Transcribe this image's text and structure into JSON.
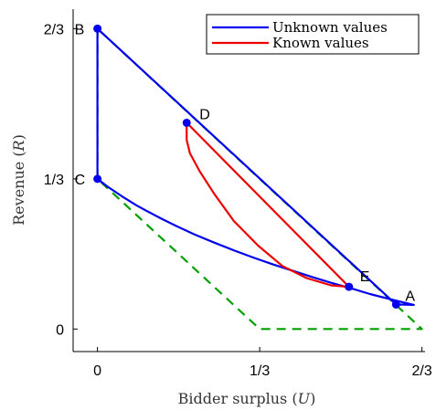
{
  "chart_data": {
    "type": "line",
    "title": "",
    "xlabel": "Bidder surplus (",
    "xlabel_var": "U",
    "xlabel_close": ")",
    "ylabel": "Revenue (",
    "ylabel_var": "R",
    "ylabel_close": ")",
    "xlim": [
      -0.05,
      0.673
    ],
    "ylim": [
      -0.05,
      0.71
    ],
    "xticks": [
      {
        "value": 0,
        "label": "0"
      },
      {
        "value": 0.3333,
        "label": "1/3"
      },
      {
        "value": 0.6667,
        "label": "2/3"
      }
    ],
    "yticks": [
      {
        "value": 0,
        "label": "0"
      },
      {
        "value": 0.3333,
        "label": "1/3"
      },
      {
        "value": 0.6667,
        "label": "2/3"
      }
    ],
    "legend_position": "top-right",
    "series": [
      {
        "name": "Unknown values",
        "color": "#0000ee",
        "points": [
          [
            0.0,
            0.6667
          ],
          [
            0.0,
            0.3333
          ],
          [
            0.0,
            0.3333
          ],
          [
            0.02,
            0.3167
          ],
          [
            0.05,
            0.2947
          ],
          [
            0.08,
            0.2747
          ],
          [
            0.1,
            0.2627
          ],
          [
            0.13,
            0.2457
          ],
          [
            0.16,
            0.2297
          ],
          [
            0.2,
            0.2097
          ],
          [
            0.24,
            0.1917
          ],
          [
            0.28,
            0.1747
          ],
          [
            0.32,
            0.1587
          ],
          [
            0.36,
            0.1437
          ],
          [
            0.4,
            0.1297
          ],
          [
            0.44,
            0.1157
          ],
          [
            0.48,
            0.1027
          ],
          [
            0.52,
            0.0907
          ],
          [
            0.56,
            0.0777
          ],
          [
            0.6,
            0.0667
          ],
          [
            0.625,
            0.06
          ],
          [
            0.65,
            0.0535
          ],
          [
            0.6667,
            0.0467
          ],
          [
            0.0,
            0.6667
          ],
          [
            0.0,
            0.6667
          ]
        ],
        "segments": [
          [
            [
              0.0,
              0.6667
            ],
            [
              0.0,
              0.3333
            ]
          ],
          [
            [
              0.0,
              0.3333
            ],
            [
              0.02,
              0.3167
            ],
            [
              0.05,
              0.2947
            ],
            [
              0.08,
              0.2747
            ],
            [
              0.1,
              0.2627
            ],
            [
              0.13,
              0.2457
            ],
            [
              0.16,
              0.2297
            ],
            [
              0.2,
              0.2097
            ],
            [
              0.24,
              0.1917
            ],
            [
              0.28,
              0.1747
            ],
            [
              0.32,
              0.1587
            ],
            [
              0.36,
              0.1437
            ],
            [
              0.4,
              0.1297
            ],
            [
              0.44,
              0.1157
            ],
            [
              0.48,
              0.1027
            ],
            [
              0.52,
              0.0907
            ],
            [
              0.56,
              0.0777
            ],
            [
              0.6,
              0.0667
            ],
            [
              0.625,
              0.06
            ],
            [
              0.65,
              0.0535
            ],
            [
              0.6135,
              0.0545
            ]
          ],
          [
            [
              0.0,
              0.6667
            ],
            [
              0.6135,
              0.0545
            ]
          ]
        ]
      },
      {
        "name": "Known values",
        "color": "#ee0000",
        "segments": [
          [
            [
              0.1833,
              0.4578
            ],
            [
              0.1833,
              0.42
            ],
            [
              0.19,
              0.39
            ],
            [
              0.21,
              0.35
            ],
            [
              0.24,
              0.3
            ],
            [
              0.28,
              0.24
            ],
            [
              0.33,
              0.185
            ],
            [
              0.38,
              0.14
            ],
            [
              0.43,
              0.113
            ],
            [
              0.48,
              0.097
            ],
            [
              0.5167,
              0.0937
            ]
          ],
          [
            [
              0.1833,
              0.4578
            ],
            [
              0.5167,
              0.0937
            ]
          ]
        ]
      },
      {
        "name": "",
        "color": "#00a000",
        "dashed": true,
        "segments": [
          [
            [
              0.0,
              0.6667
            ],
            [
              0.0,
              0.3333
            ],
            [
              0.3333,
              0.0
            ],
            [
              0.6667,
              0.0
            ],
            [
              0.0,
              0.6667
            ]
          ]
        ]
      }
    ],
    "points": [
      {
        "label": "A",
        "x": 0.6135,
        "y": 0.0545
      },
      {
        "label": "B",
        "x": 0.0,
        "y": 0.6667
      },
      {
        "label": "C",
        "x": 0.0,
        "y": 0.3333
      },
      {
        "label": "D",
        "x": 0.1833,
        "y": 0.4578
      },
      {
        "label": "E",
        "x": 0.5167,
        "y": 0.0937
      }
    ]
  }
}
